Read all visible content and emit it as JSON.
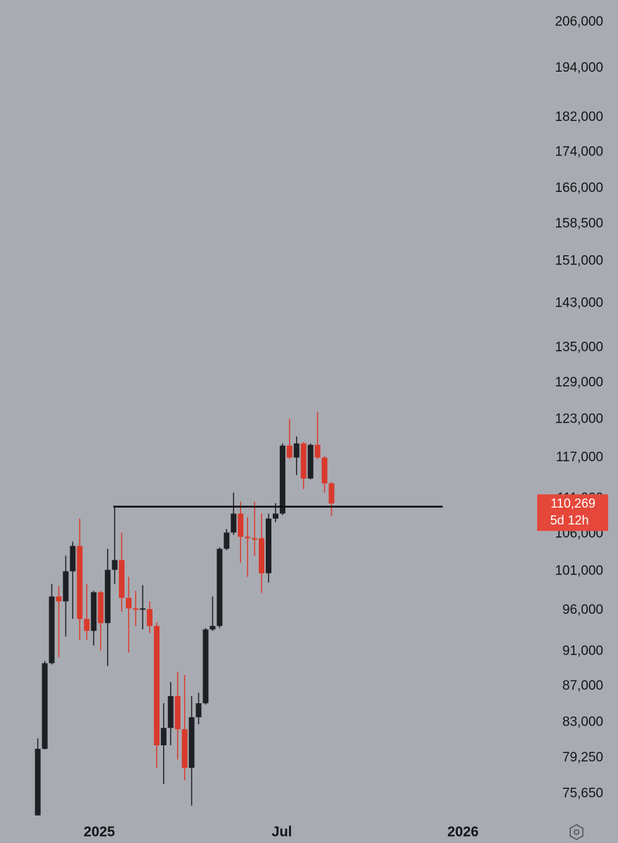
{
  "chart_data": {
    "type": "candlestick",
    "log_scale": true,
    "grid": false,
    "up_color": "#1f2024",
    "down_color": "#d93a2c",
    "x": [
      0,
      1,
      2,
      3,
      4,
      5,
      6,
      7,
      8,
      9,
      10,
      11,
      12,
      13,
      14,
      15,
      16,
      17,
      18,
      19,
      20,
      21,
      22,
      23,
      24,
      25,
      26,
      27,
      28,
      29,
      30,
      31,
      32,
      33,
      34,
      35,
      36,
      37,
      38,
      39,
      40,
      41,
      42
    ],
    "open": [
      73550,
      80190,
      89620,
      97730,
      97110,
      100980,
      104360,
      94920,
      93460,
      98270,
      94410,
      101170,
      102460,
      97560,
      96230,
      96060,
      96140,
      94060,
      80560,
      82400,
      85870,
      82260,
      78240,
      83550,
      85080,
      93630,
      94060,
      103970,
      106190,
      108830,
      105600,
      105410,
      105410,
      100720,
      108130,
      108830,
      118880,
      117050,
      119210,
      113900,
      118990,
      117050,
      113180
    ],
    "high": [
      81290,
      89860,
      99340,
      99080,
      103040,
      104940,
      108130,
      99340,
      98450,
      98450,
      103970,
      109820,
      106190,
      100260,
      98450,
      99170,
      97110,
      94500,
      85080,
      87450,
      88650,
      88250,
      85870,
      86250,
      93810,
      97730,
      104170,
      106670,
      111840,
      110520,
      108330,
      110520,
      108830,
      108830,
      110310,
      119210,
      123090,
      120300,
      119440,
      119210,
      124220,
      117270,
      113380
    ],
    "low": [
      73550,
      80120,
      89460,
      90280,
      92790,
      94920,
      92370,
      92370,
      91700,
      91110,
      89300,
      99340,
      95790,
      90860,
      94060,
      93630,
      93210,
      78240,
      76610,
      80560,
      79100,
      76970,
      74490,
      82790,
      84930,
      93460,
      93810,
      103790,
      105880,
      102090,
      100260,
      103040,
      98180,
      99520,
      107640,
      108620,
      116840,
      114410,
      112350,
      113790,
      116840,
      111840,
      108520
    ],
    "close": [
      80190,
      89620,
      97730,
      97110,
      100980,
      104360,
      94920,
      93460,
      98270,
      94410,
      101170,
      102460,
      97560,
      96230,
      96060,
      96230,
      94060,
      80560,
      82400,
      85870,
      82260,
      78240,
      83550,
      85080,
      93630,
      94060,
      103970,
      106190,
      108830,
      105600,
      105410,
      105210,
      100720,
      108130,
      108830,
      118880,
      117050,
      119210,
      113900,
      118990,
      117050,
      113180,
      110269
    ],
    "xlim": [
      -5.4,
      71
    ],
    "ylim": [
      73200,
      212000
    ],
    "xticks": [
      {
        "value": 8.8,
        "label": "2025"
      },
      {
        "value": 34.9,
        "label": "Jul"
      },
      {
        "value": 60.8,
        "label": "2026"
      }
    ],
    "yticks": [
      {
        "value": 206000,
        "label": "206,000"
      },
      {
        "value": 194000,
        "label": "194,000"
      },
      {
        "value": 182000,
        "label": "182,000"
      },
      {
        "value": 174000,
        "label": "174,000"
      },
      {
        "value": 166000,
        "label": "166,000"
      },
      {
        "value": 158500,
        "label": "158,500"
      },
      {
        "value": 151000,
        "label": "151,000"
      },
      {
        "value": 143000,
        "label": "143,000"
      },
      {
        "value": 135000,
        "label": "135,000"
      },
      {
        "value": 129000,
        "label": "129,000"
      },
      {
        "value": 123000,
        "label": "123,000"
      },
      {
        "value": 117000,
        "label": "117,000"
      },
      {
        "value": 111000,
        "label": "111,000"
      },
      {
        "value": 106000,
        "label": "106,000"
      },
      {
        "value": 101000,
        "label": "101,000"
      },
      {
        "value": 96000,
        "label": "96,000"
      },
      {
        "value": 91000,
        "label": "91,000"
      },
      {
        "value": 87000,
        "label": "87,000"
      },
      {
        "value": 83000,
        "label": "83,000"
      },
      {
        "value": 79250,
        "label": "79,250"
      },
      {
        "value": 75650,
        "label": "75,650"
      }
    ],
    "level_line": {
      "value": 109820,
      "from": 10.8,
      "to": 57.9,
      "color": "#0d0d0f"
    },
    "last_price": {
      "value": 110269,
      "label": "110,269",
      "color": "#e5473a"
    },
    "countdown": "5d 12h"
  }
}
